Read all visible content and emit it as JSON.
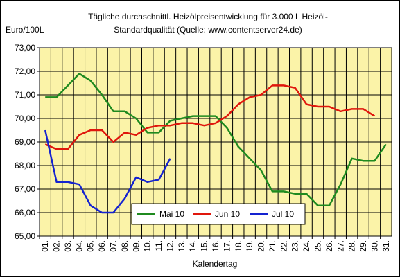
{
  "chart_data": {
    "type": "line",
    "title_line1": "Tägliche durchschnittl. Heizölpreisentwicklung für 3.000 L Heizöl-",
    "title_line2": "Standardqualität (Quelle: www.contentserver24.de)",
    "ylabel": "Euro/100L",
    "xlabel": "Kalendertag",
    "ylim": [
      65,
      73
    ],
    "yticks": [
      "65,00",
      "66,00",
      "67,00",
      "68,00",
      "69,00",
      "70,00",
      "71,00",
      "72,00",
      "73,00"
    ],
    "xticks": [
      "01.",
      "02.",
      "03.",
      "04.",
      "05.",
      "06.",
      "07.",
      "08.",
      "09.",
      "10.",
      "11.",
      "12.",
      "13.",
      "14.",
      "15.",
      "16.",
      "17.",
      "18.",
      "19.",
      "20.",
      "21.",
      "22.",
      "23.",
      "24.",
      "25.",
      "26.",
      "27.",
      "28.",
      "29.",
      "30.",
      "31."
    ],
    "grid": true,
    "legend_position": "bottom-center",
    "plot_background": "#fbf3a8",
    "series": [
      {
        "name": "Mai 10",
        "color": "#1f8a1f",
        "x": [
          1,
          2,
          3,
          4,
          5,
          6,
          7,
          8,
          9,
          10,
          11,
          12,
          13,
          14,
          15,
          16,
          17,
          18,
          19,
          20,
          21,
          22,
          23,
          24,
          25,
          26,
          27,
          28,
          29,
          30,
          31
        ],
        "values": [
          70.9,
          70.9,
          71.4,
          71.9,
          71.6,
          71.0,
          70.3,
          70.3,
          70.0,
          69.4,
          69.4,
          69.9,
          70.0,
          70.1,
          70.1,
          70.1,
          69.6,
          68.8,
          68.3,
          67.8,
          66.9,
          66.9,
          66.8,
          66.8,
          66.3,
          66.3,
          67.2,
          68.3,
          68.2,
          68.2,
          68.9
        ]
      },
      {
        "name": "Jun 10",
        "color": "#e0160c",
        "x": [
          1,
          2,
          3,
          4,
          5,
          6,
          7,
          8,
          9,
          10,
          11,
          12,
          13,
          14,
          15,
          16,
          17,
          18,
          19,
          20,
          21,
          22,
          23,
          24,
          25,
          26,
          27,
          28,
          29,
          30
        ],
        "values": [
          68.9,
          68.7,
          68.7,
          69.3,
          69.5,
          69.5,
          69.0,
          69.4,
          69.3,
          69.6,
          69.7,
          69.7,
          69.8,
          69.8,
          69.7,
          69.8,
          70.1,
          70.6,
          70.9,
          71.0,
          71.4,
          71.4,
          71.3,
          70.6,
          70.5,
          70.5,
          70.3,
          70.4,
          70.4,
          70.1
        ]
      },
      {
        "name": "Jul 10",
        "color": "#1422d0",
        "x": [
          1,
          2,
          3,
          4,
          5,
          6,
          7,
          8,
          9,
          10,
          11,
          12
        ],
        "values": [
          69.5,
          67.3,
          67.3,
          67.2,
          66.3,
          66.0,
          66.0,
          66.6,
          67.5,
          67.3,
          67.4,
          68.3
        ]
      }
    ]
  }
}
